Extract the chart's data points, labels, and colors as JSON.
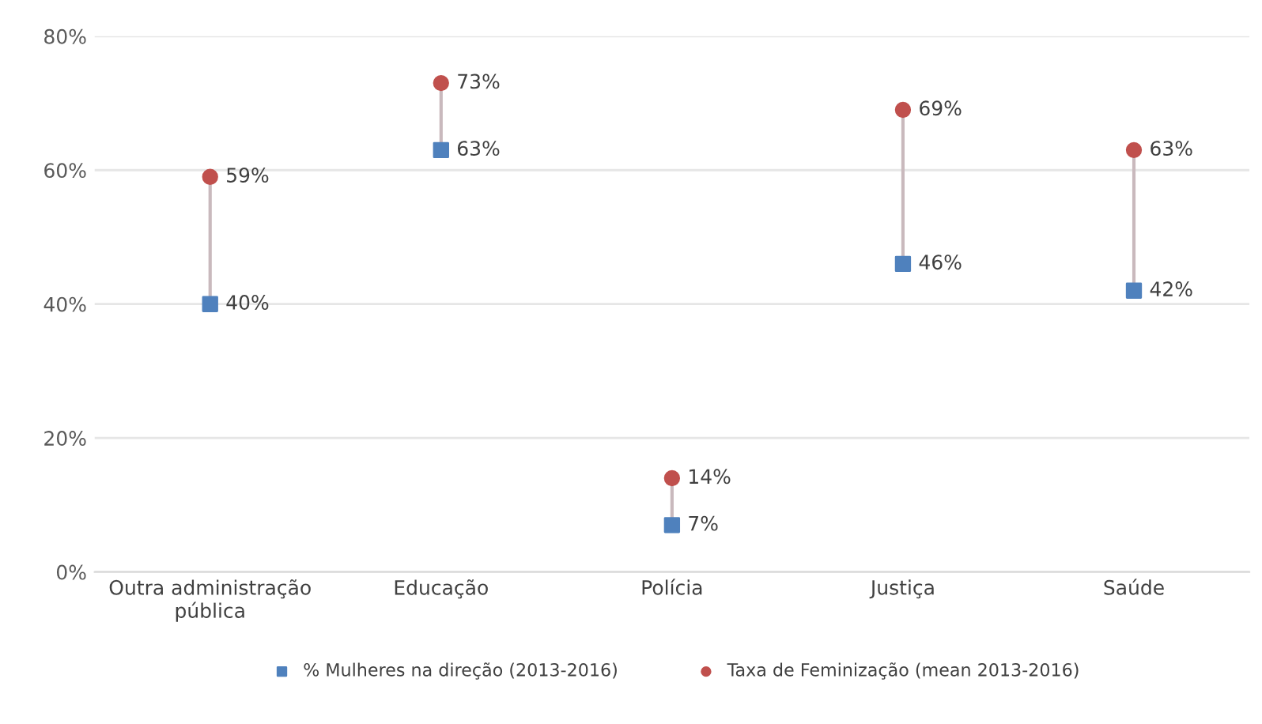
{
  "chart_data": {
    "type": "scatter",
    "categories": [
      "Outra administração\npública",
      "Educação",
      "Polícia",
      "Justiça",
      "Saúde"
    ],
    "series": [
      {
        "name": "% Mulheres na direção (2013-2016)",
        "color": "#4f81bd",
        "marker": "square",
        "values": [
          40,
          63,
          7,
          46,
          42
        ],
        "value_labels": [
          "40%",
          "63%",
          "7%",
          "46%",
          "42%"
        ]
      },
      {
        "name": "Taxa de Feminização (mean 2013-2016)",
        "color": "#c0504d",
        "marker": "circle",
        "values": [
          59,
          73,
          14,
          69,
          63
        ],
        "value_labels": [
          "59%",
          "73%",
          "14%",
          "69%",
          "63%"
        ]
      }
    ],
    "ylim": [
      0,
      80
    ],
    "yticks": [
      {
        "value": 0,
        "label": "0%"
      },
      {
        "value": 20,
        "label": "20%"
      },
      {
        "value": 40,
        "label": "40%"
      },
      {
        "value": 60,
        "label": "60%"
      },
      {
        "value": 80,
        "label": "80%"
      }
    ],
    "grid": "y",
    "legend": "bottom"
  }
}
